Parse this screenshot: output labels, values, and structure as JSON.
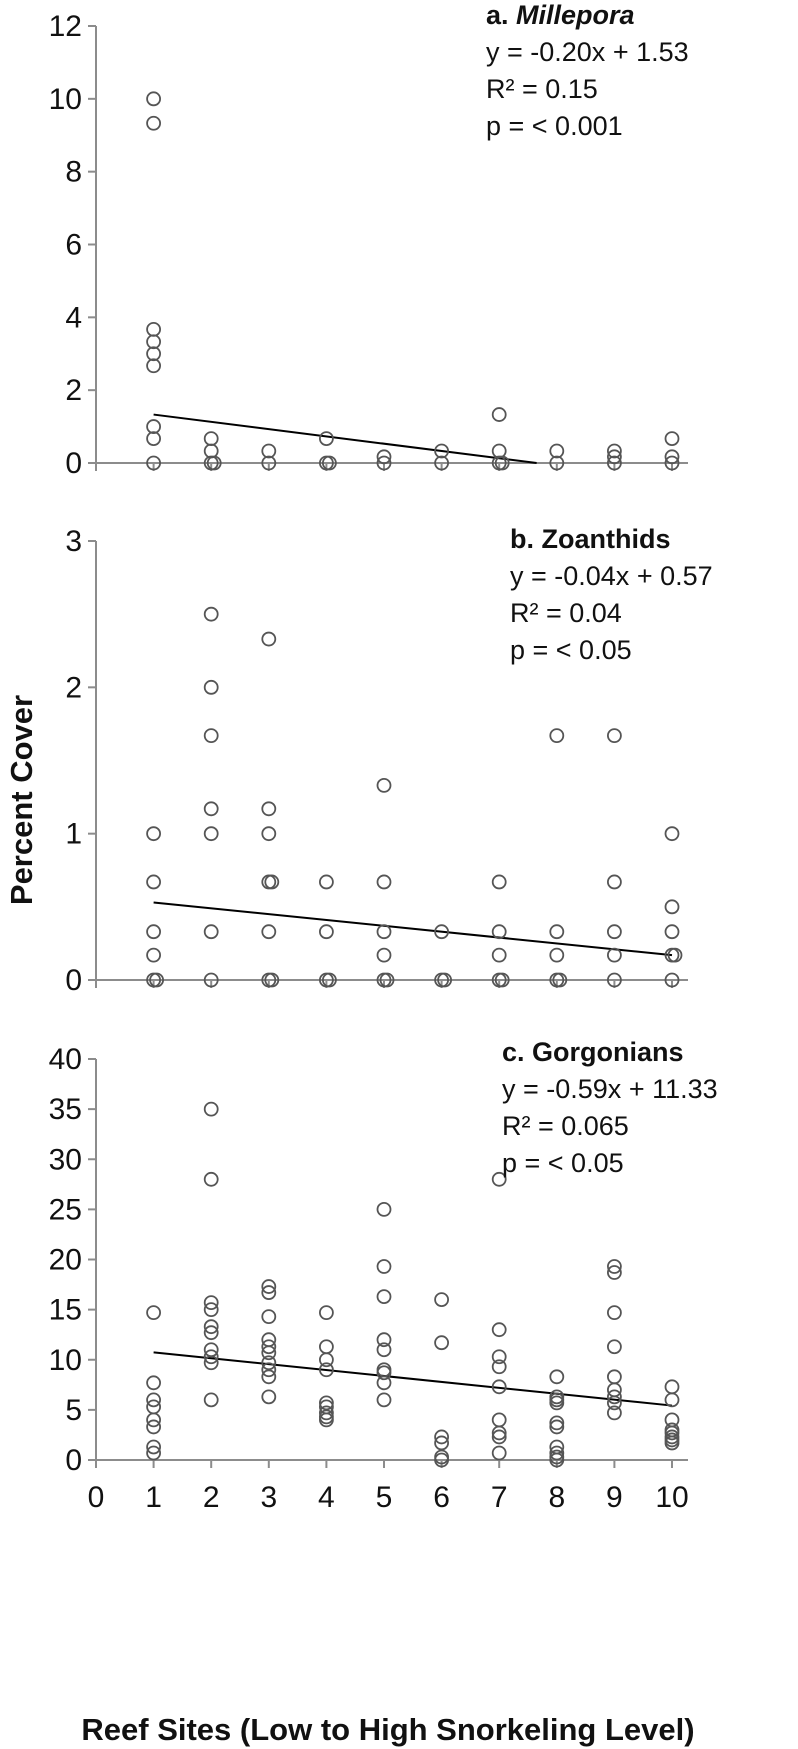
{
  "ylabel": "Percent Cover",
  "xlabel": "Reef Sites (Low to High Snorkeling Level)",
  "chart_data": [
    {
      "type": "scatter",
      "label_prefix": "a. ",
      "label_name": "Millepora",
      "label_italic": true,
      "equation": "y = -0.20x + 1.53",
      "r2": "R² = 0.15",
      "p": "p = < 0.001",
      "ylim": [
        0,
        12
      ],
      "yticks": [
        0,
        2,
        4,
        6,
        8,
        10,
        12
      ],
      "xlim": [
        0,
        10
      ],
      "trendline": {
        "slope": -0.2,
        "intercept": 1.53,
        "x_start": 1,
        "x_end": 10
      },
      "points": [
        [
          1,
          10
        ],
        [
          1,
          9.33
        ],
        [
          1,
          3.67
        ],
        [
          1,
          3.33
        ],
        [
          1,
          3
        ],
        [
          1,
          2.67
        ],
        [
          1,
          1
        ],
        [
          1,
          0.67
        ],
        [
          1,
          0
        ],
        [
          2,
          0.67
        ],
        [
          2,
          0.33
        ],
        [
          2,
          0
        ],
        [
          2,
          0
        ],
        [
          3,
          0.33
        ],
        [
          3,
          0
        ],
        [
          4,
          0.67
        ],
        [
          4,
          0
        ],
        [
          4,
          0
        ],
        [
          5,
          0.17
        ],
        [
          5,
          0
        ],
        [
          6,
          0.33
        ],
        [
          6,
          0
        ],
        [
          7,
          1.33
        ],
        [
          7,
          0.33
        ],
        [
          7,
          0
        ],
        [
          7,
          0
        ],
        [
          8,
          0.33
        ],
        [
          8,
          0
        ],
        [
          9,
          0.33
        ],
        [
          9,
          0.17
        ],
        [
          9,
          0
        ],
        [
          10,
          0.67
        ],
        [
          10,
          0.17
        ],
        [
          10,
          0
        ]
      ]
    },
    {
      "type": "scatter",
      "label_prefix": "b. ",
      "label_name": "Zoanthids",
      "label_italic": false,
      "equation": "y = -0.04x + 0.57",
      "r2": "R² = 0.04",
      "p": "p = < 0.05",
      "ylim": [
        0,
        3
      ],
      "yticks": [
        0,
        1,
        2,
        3
      ],
      "xlim": [
        0,
        10
      ],
      "trendline": {
        "slope": -0.04,
        "intercept": 0.57,
        "x_start": 1,
        "x_end": 10
      },
      "points": [
        [
          1,
          1
        ],
        [
          1,
          0.67
        ],
        [
          1,
          0.33
        ],
        [
          1,
          0.17
        ],
        [
          1,
          0
        ],
        [
          1,
          0
        ],
        [
          2,
          2.5
        ],
        [
          2,
          2
        ],
        [
          2,
          1.67
        ],
        [
          2,
          1.17
        ],
        [
          2,
          1
        ],
        [
          2,
          0.33
        ],
        [
          2,
          0
        ],
        [
          3,
          2.33
        ],
        [
          3,
          1.17
        ],
        [
          3,
          1
        ],
        [
          3,
          0.67
        ],
        [
          3,
          0.67
        ],
        [
          3,
          0.33
        ],
        [
          3,
          0
        ],
        [
          3,
          0
        ],
        [
          4,
          0.67
        ],
        [
          4,
          0.33
        ],
        [
          4,
          0
        ],
        [
          4,
          0
        ],
        [
          5,
          1.33
        ],
        [
          5,
          0.67
        ],
        [
          5,
          0.33
        ],
        [
          5,
          0.17
        ],
        [
          5,
          0
        ],
        [
          5,
          0
        ],
        [
          6,
          0.33
        ],
        [
          6,
          0
        ],
        [
          6,
          0
        ],
        [
          7,
          0.67
        ],
        [
          7,
          0.33
        ],
        [
          7,
          0.17
        ],
        [
          7,
          0
        ],
        [
          7,
          0
        ],
        [
          8,
          1.67
        ],
        [
          8,
          0.33
        ],
        [
          8,
          0.17
        ],
        [
          8,
          0
        ],
        [
          8,
          0
        ],
        [
          9,
          1.67
        ],
        [
          9,
          0.67
        ],
        [
          9,
          0.33
        ],
        [
          9,
          0.17
        ],
        [
          9,
          0
        ],
        [
          10,
          1
        ],
        [
          10,
          0.5
        ],
        [
          10,
          0.33
        ],
        [
          10,
          0.17
        ],
        [
          10,
          0.17
        ],
        [
          10,
          0
        ]
      ]
    },
    {
      "type": "scatter",
      "label_prefix": "c. ",
      "label_name": "Gorgonians",
      "label_italic": false,
      "equation": "y = -0.59x + 11.33",
      "r2": "R² = 0.065",
      "p": "p = < 0.05",
      "ylim": [
        0,
        40
      ],
      "yticks": [
        0,
        5,
        10,
        15,
        20,
        25,
        30,
        35,
        40
      ],
      "xlim": [
        0,
        10
      ],
      "xticks": [
        0,
        1,
        2,
        3,
        4,
        5,
        6,
        7,
        8,
        9,
        10
      ],
      "trendline": {
        "slope": -0.59,
        "intercept": 11.33,
        "x_start": 1,
        "x_end": 10
      },
      "points": [
        [
          1,
          14.7
        ],
        [
          1,
          7.7
        ],
        [
          1,
          6
        ],
        [
          1,
          5.3
        ],
        [
          1,
          4
        ],
        [
          1,
          3.3
        ],
        [
          1,
          1.3
        ],
        [
          1,
          0.7
        ],
        [
          2,
          35
        ],
        [
          2,
          28
        ],
        [
          2,
          15.7
        ],
        [
          2,
          15
        ],
        [
          2,
          13.3
        ],
        [
          2,
          12.7
        ],
        [
          2,
          11
        ],
        [
          2,
          10.3
        ],
        [
          2,
          9.7
        ],
        [
          2,
          6
        ],
        [
          3,
          17.3
        ],
        [
          3,
          16.7
        ],
        [
          3,
          14.3
        ],
        [
          3,
          12
        ],
        [
          3,
          11.3
        ],
        [
          3,
          10.7
        ],
        [
          3,
          9.7
        ],
        [
          3,
          9
        ],
        [
          3,
          8.3
        ],
        [
          3,
          6.3
        ],
        [
          4,
          14.7
        ],
        [
          4,
          11.3
        ],
        [
          4,
          10
        ],
        [
          4,
          9
        ],
        [
          4,
          5.7
        ],
        [
          4,
          5.3
        ],
        [
          4,
          4.7
        ],
        [
          4,
          4.3
        ],
        [
          4,
          4
        ],
        [
          5,
          25
        ],
        [
          5,
          19.3
        ],
        [
          5,
          16.3
        ],
        [
          5,
          12
        ],
        [
          5,
          11
        ],
        [
          5,
          9
        ],
        [
          5,
          8.7
        ],
        [
          5,
          7.7
        ],
        [
          5,
          6
        ],
        [
          6,
          16
        ],
        [
          6,
          11.7
        ],
        [
          6,
          2.3
        ],
        [
          6,
          1.7
        ],
        [
          6,
          0.3
        ],
        [
          6,
          0
        ],
        [
          7,
          28
        ],
        [
          7,
          13
        ],
        [
          7,
          10.3
        ],
        [
          7,
          9.3
        ],
        [
          7,
          7.3
        ],
        [
          7,
          4
        ],
        [
          7,
          2.7
        ],
        [
          7,
          2.3
        ],
        [
          7,
          0.7
        ],
        [
          8,
          8.3
        ],
        [
          8,
          6.3
        ],
        [
          8,
          6
        ],
        [
          8,
          5.7
        ],
        [
          8,
          3.7
        ],
        [
          8,
          3.3
        ],
        [
          8,
          1.3
        ],
        [
          8,
          0.7
        ],
        [
          8,
          0.3
        ],
        [
          8,
          0
        ],
        [
          9,
          19.3
        ],
        [
          9,
          18.7
        ],
        [
          9,
          14.7
        ],
        [
          9,
          11.3
        ],
        [
          9,
          8.3
        ],
        [
          9,
          7
        ],
        [
          9,
          6.3
        ],
        [
          9,
          5.7
        ],
        [
          9,
          4.7
        ],
        [
          10,
          7.3
        ],
        [
          10,
          6
        ],
        [
          10,
          4
        ],
        [
          10,
          3
        ],
        [
          10,
          2.7
        ],
        [
          10,
          2.3
        ],
        [
          10,
          2
        ],
        [
          10,
          1.7
        ]
      ]
    }
  ]
}
